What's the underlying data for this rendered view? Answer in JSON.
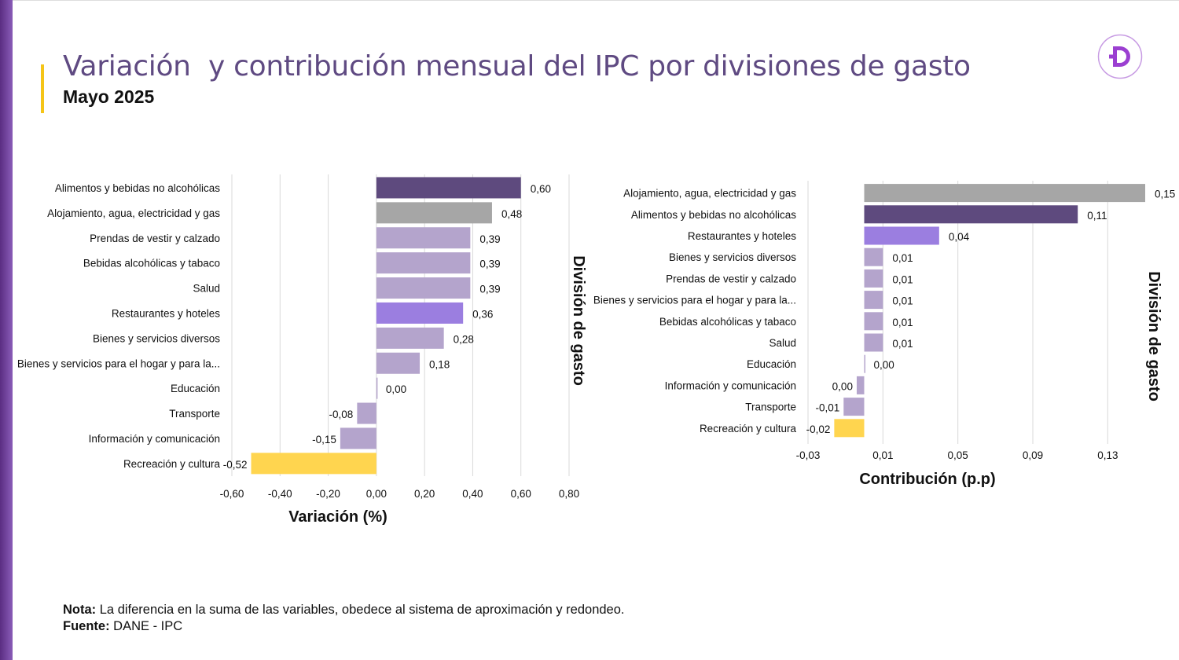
{
  "header": {
    "title": "Variación  y contribución mensual del IPC por divisiones de gasto",
    "subtitle": "Mayo 2025"
  },
  "logo": {
    "icon": "dane-logo-icon",
    "letter": "D",
    "color": "#9b3fd1"
  },
  "colors": {
    "dark_purple": "#5e4a7e",
    "gray": "#a6a6a6",
    "light_purple": "#b4a4cc",
    "violet": "#9b7ee0",
    "yellow": "#ffd54f",
    "grid": "#d9d9d9",
    "title": "#5f4a82",
    "side_bar": "#6b3e96"
  },
  "chart_data": [
    {
      "type": "bar",
      "orientation": "horizontal",
      "categories": [
        "Alimentos y bebidas no alcohólicas",
        "Alojamiento, agua, electricidad y gas",
        "Prendas de vestir y calzado",
        "Bebidas alcohólicas y tabaco",
        "Salud",
        "Restaurantes y hoteles",
        "Bienes y servicios diversos",
        "Bienes y servicios para el hogar y para la...",
        "Educación",
        "Transporte",
        "Información y comunicación",
        "Recreación y cultura"
      ],
      "values": [
        0.6,
        0.48,
        0.39,
        0.39,
        0.39,
        0.36,
        0.28,
        0.18,
        0.0,
        -0.08,
        -0.15,
        -0.52
      ],
      "labels": [
        "0,60",
        "0,48",
        "0,39",
        "0,39",
        "0,39",
        "0,36",
        "0,28",
        "0,18",
        "0,00",
        "-0,08",
        "-0,15",
        "-0,52"
      ],
      "bar_colors": [
        "dark_purple",
        "gray",
        "light_purple",
        "light_purple",
        "light_purple",
        "violet",
        "light_purple",
        "light_purple",
        "light_purple",
        "light_purple",
        "light_purple",
        "yellow"
      ],
      "xlabel": "Variación (%)",
      "ylabel": "División de gasto",
      "xlim": [
        -0.6,
        0.8
      ],
      "xticks": [
        -0.6,
        -0.4,
        -0.2,
        0.0,
        0.2,
        0.4,
        0.6,
        0.8
      ],
      "xtick_labels": [
        "-0,60",
        "-0,40",
        "-0,20",
        "0,00",
        "0,20",
        "0,40",
        "0,60",
        "0,80"
      ],
      "grid": true,
      "legend": "none"
    },
    {
      "type": "bar",
      "orientation": "horizontal",
      "categories": [
        "Alojamiento, agua, electricidad y gas",
        "Alimentos y bebidas no alcohólicas",
        "Restaurantes y hoteles",
        "Bienes y servicios diversos",
        "Prendas de vestir y calzado",
        "Bienes y servicios para el hogar y para la...",
        "Bebidas alcohólicas y tabaco",
        "Salud",
        "Educación",
        "Información y comunicación",
        "Transporte",
        "Recreación y cultura"
      ],
      "values": [
        0.15,
        0.114,
        0.04,
        0.01,
        0.01,
        0.01,
        0.01,
        0.01,
        0.0,
        -0.004,
        -0.011,
        -0.016
      ],
      "labels": [
        "0,15",
        "0,11",
        "0,04",
        "0,01",
        "0,01",
        "0,01",
        "0,01",
        "0,01",
        "0,00",
        "0,00",
        "-0,01",
        "-0,02"
      ],
      "bar_colors": [
        "gray",
        "dark_purple",
        "violet",
        "light_purple",
        "light_purple",
        "light_purple",
        "light_purple",
        "light_purple",
        "light_purple",
        "light_purple",
        "light_purple",
        "yellow"
      ],
      "xlabel": "Contribución (p.p)",
      "ylabel": "División de gasto",
      "xlim": [
        -0.03,
        0.15
      ],
      "xticks": [
        -0.03,
        0.01,
        0.05,
        0.09,
        0.13
      ],
      "xtick_labels": [
        "-0,03",
        "0,01",
        "0,05",
        "0,09",
        "0,13"
      ],
      "grid": true,
      "legend": "none"
    }
  ],
  "notes": {
    "nota_label": "Nota:",
    "nota_text": " La diferencia en la suma de las variables, obedece al sistema de aproximación y redondeo.",
    "fuente_label": "Fuente:",
    "fuente_text": " DANE - IPC"
  }
}
